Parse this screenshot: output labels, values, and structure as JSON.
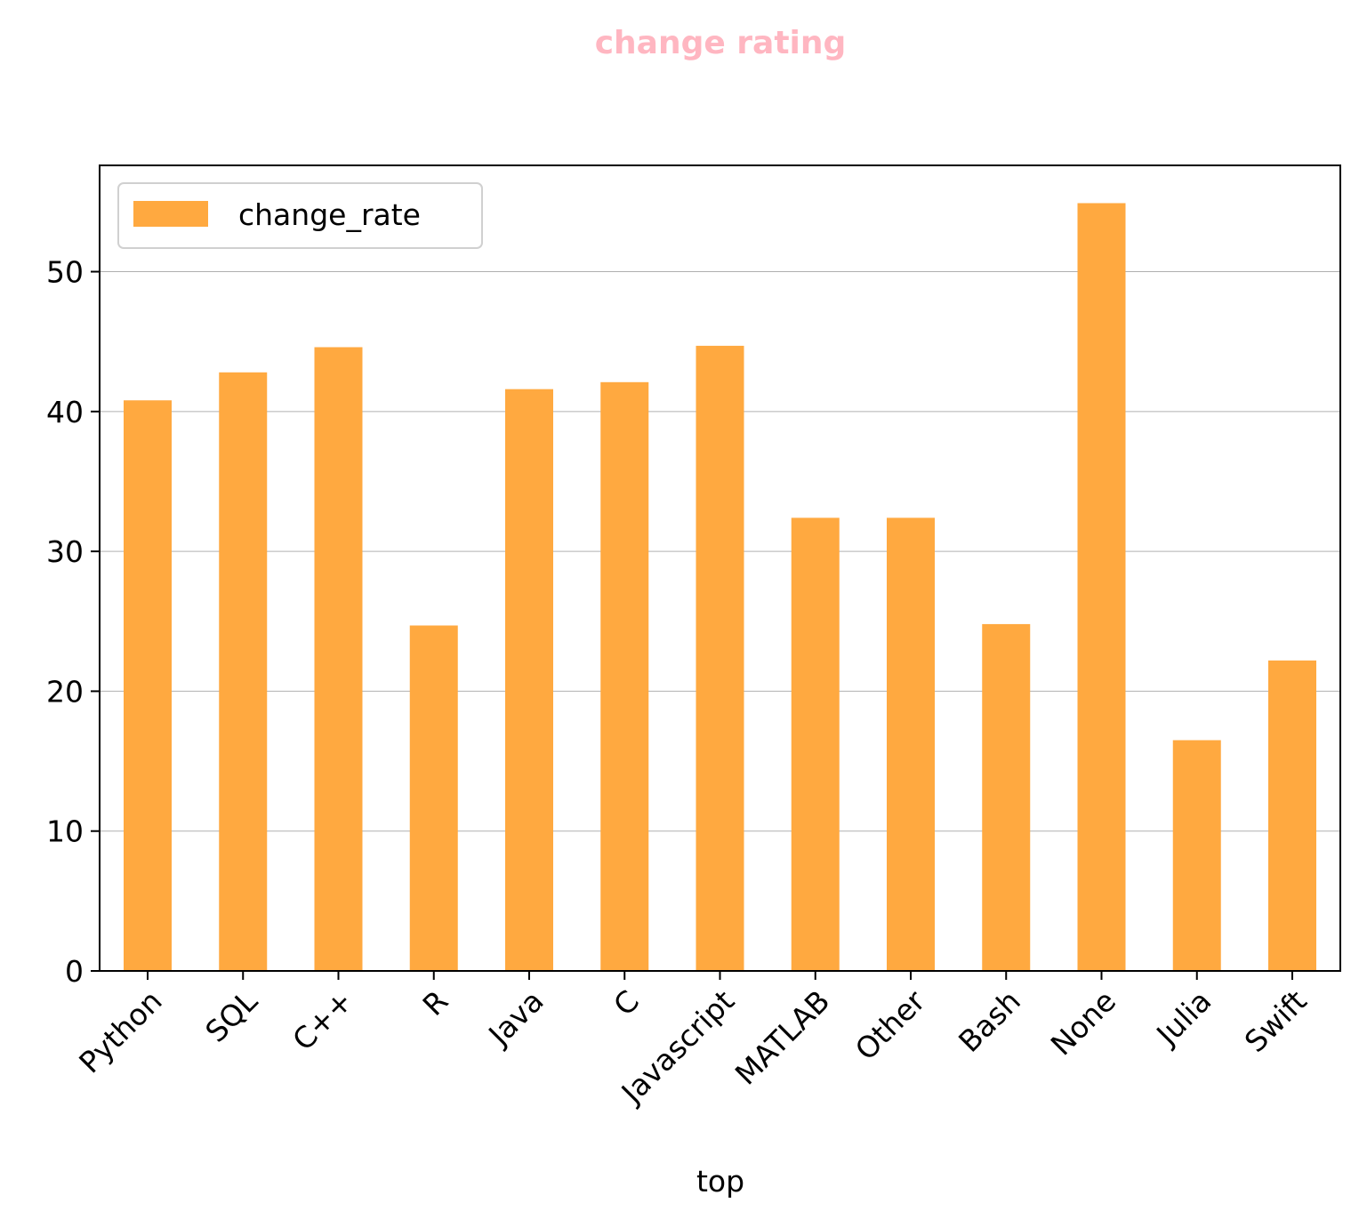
{
  "chart_data": {
    "type": "bar",
    "title": "change rating",
    "xlabel": "top",
    "ylabel": "",
    "categories": [
      "Python",
      "SQL",
      "C++",
      "R",
      "Java",
      "C",
      "Javascript",
      "MATLAB",
      "Other",
      "Bash",
      "None",
      "Julia",
      "Swift"
    ],
    "series": [
      {
        "name": "change_rate",
        "values": [
          40.8,
          42.8,
          44.6,
          24.7,
          41.6,
          42.1,
          44.7,
          32.4,
          32.4,
          24.8,
          54.9,
          16.5,
          22.2
        ]
      }
    ],
    "ylim": [
      0,
      57.6
    ],
    "yticks": [
      0,
      10,
      20,
      30,
      40,
      50
    ],
    "grid": "y",
    "legend_position": "upper left",
    "colors": {
      "bar": "#ffa940",
      "title": "#ffb6c1",
      "grid": "#b0b0b0",
      "axis": "#000000"
    }
  }
}
